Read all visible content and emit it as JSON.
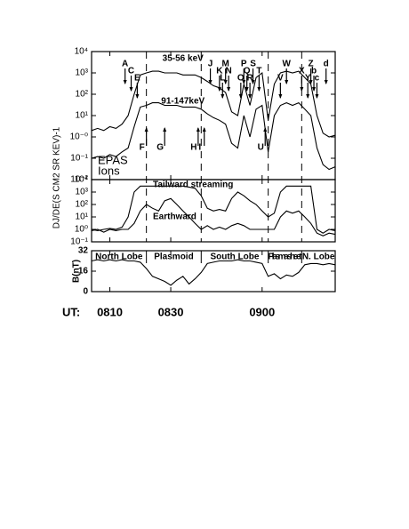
{
  "chart_data": [
    {
      "type": "line",
      "ylog": true,
      "x": [
        484,
        486,
        488,
        490,
        492,
        494,
        496,
        498,
        500,
        502,
        504,
        506,
        508,
        510,
        512,
        514,
        516,
        518,
        520,
        522,
        524,
        526,
        528,
        530,
        532,
        534,
        536,
        538,
        540,
        542,
        544,
        546,
        548,
        550,
        552,
        554,
        556,
        558,
        560,
        562,
        564
      ],
      "xlim": [
        484,
        564
      ],
      "ylim": [
        0.01,
        10000
      ],
      "yticks": [
        {
          "value": 10000,
          "label": "10⁴"
        },
        {
          "value": 1000,
          "label": "10³"
        },
        {
          "value": 100,
          "label": "10²"
        },
        {
          "value": 10,
          "label": "10¹"
        },
        {
          "value": 1,
          "label": "10⁻⁰"
        },
        {
          "value": 0.1,
          "label": "10⁻¹"
        },
        {
          "value": 0.01,
          "label": "10⁻²"
        }
      ],
      "series": [
        {
          "name": "35-56 keV",
          "color": "#000000",
          "values": [
            2,
            2.5,
            2,
            3,
            2.5,
            4,
            10,
            100,
            800,
            1000,
            1200,
            1200,
            1000,
            1000,
            1000,
            800,
            800,
            800,
            600,
            400,
            250,
            200,
            120,
            15,
            10,
            300,
            30,
            600,
            1000,
            6,
            300,
            1000,
            1200,
            1000,
            1200,
            600,
            300,
            10,
            1.5,
            1,
            1.2
          ]
        },
        {
          "name": "91-147keV",
          "color": "#000000",
          "values": [
            0.1,
            0.12,
            0.1,
            0.15,
            0.12,
            0.2,
            0.3,
            3,
            25,
            30,
            40,
            40,
            30,
            30,
            30,
            25,
            25,
            25,
            20,
            12,
            8,
            6,
            4,
            0.5,
            0.3,
            10,
            1,
            20,
            30,
            0.2,
            10,
            30,
            40,
            30,
            40,
            20,
            10,
            0.3,
            0.05,
            0.03,
            0.04
          ]
        }
      ],
      "annotations": [
        "EPAS",
        "Ions"
      ],
      "boundaries": [
        502,
        520,
        542,
        553
      ],
      "events_down": [
        {
          "label": "A",
          "x": 495
        },
        {
          "label": "C",
          "x": 497
        },
        {
          "label": "E",
          "x": 499
        },
        {
          "label": "J",
          "x": 523
        },
        {
          "label": "K",
          "x": 526
        },
        {
          "label": "L",
          "x": 527
        },
        {
          "label": "M",
          "x": 528
        },
        {
          "label": "N",
          "x": 529
        },
        {
          "label": "O",
          "x": 533
        },
        {
          "label": "P",
          "x": 534
        },
        {
          "label": "Q",
          "x": 535
        },
        {
          "label": "R",
          "x": 536
        },
        {
          "label": "S",
          "x": 537
        },
        {
          "label": "T",
          "x": 539
        },
        {
          "label": "V",
          "x": 546
        },
        {
          "label": "W",
          "x": 548
        },
        {
          "label": "X",
          "x": 553
        },
        {
          "label": "Y",
          "x": 555
        },
        {
          "label": "Z",
          "x": 556
        },
        {
          "label": "b",
          "x": 557
        },
        {
          "label": "c",
          "x": 558
        },
        {
          "label": "d",
          "x": 561
        }
      ],
      "events_up": [
        {
          "label": "F",
          "x": 502
        },
        {
          "label": "G",
          "x": 508
        },
        {
          "label": "H",
          "x": 519
        },
        {
          "label": "I",
          "x": 521
        },
        {
          "label": "U",
          "x": 541
        }
      ]
    },
    {
      "type": "line",
      "ylog": true,
      "ylabel": "DJ/DE(S CM2 SR KEV)-1",
      "ylim": [
        0.1,
        10000
      ],
      "yticks": [
        {
          "value": 10000,
          "label": "10⁴"
        },
        {
          "value": 1000,
          "label": "10³"
        },
        {
          "value": 100,
          "label": "10²"
        },
        {
          "value": 10,
          "label": "10¹"
        },
        {
          "value": 1,
          "label": "10⁰"
        },
        {
          "value": 0.1,
          "label": "10⁻¹"
        }
      ],
      "series": [
        {
          "name": "Tailward streaming",
          "color": "#000000",
          "values": [
            1,
            0.8,
            1,
            1.2,
            1,
            1.5,
            10,
            1000,
            3000,
            3000,
            3000,
            3000,
            3000,
            3000,
            3000,
            3000,
            2500,
            2000,
            500,
            50,
            30,
            40,
            30,
            300,
            1000,
            500,
            200,
            100,
            30,
            10,
            20,
            1000,
            3000,
            3000,
            3000,
            3000,
            3000,
            1,
            0.5,
            1,
            0.8
          ]
        },
        {
          "name": "Earthward",
          "color": "#000000",
          "values": [
            0.8,
            1,
            0.6,
            1,
            0.8,
            1,
            1,
            3,
            30,
            100,
            50,
            30,
            200,
            300,
            100,
            30,
            10,
            3,
            1,
            2,
            1,
            1.5,
            1,
            2,
            3,
            2,
            1,
            1,
            1,
            1,
            1,
            10,
            30,
            20,
            30,
            10,
            3,
            0.5,
            0.3,
            0.5,
            0.4
          ]
        }
      ]
    },
    {
      "type": "line",
      "ylog": false,
      "ylabel": "B(nT)",
      "ylim": [
        0,
        32
      ],
      "yticks": [
        0,
        16,
        32
      ],
      "series": [
        {
          "color": "#000000",
          "values": [
            24,
            25,
            24,
            25,
            24,
            25,
            24,
            24,
            23,
            18,
            12,
            10,
            8,
            5,
            9,
            12,
            6,
            10,
            15,
            22,
            23,
            24,
            24,
            24,
            25,
            24,
            24,
            23,
            22,
            12,
            14,
            10,
            13,
            12,
            15,
            21,
            22,
            22,
            21,
            22,
            21
          ]
        }
      ],
      "regions": [
        "North Lobe",
        "Plasmoid",
        "South Lobe",
        "Plasma sheet",
        "N. Lobe"
      ],
      "xlabel": "UT:",
      "xticks": [
        {
          "value": 490,
          "label": "0810"
        },
        {
          "value": 510,
          "label": "0830"
        },
        {
          "value": 540,
          "label": "0900"
        }
      ]
    }
  ]
}
